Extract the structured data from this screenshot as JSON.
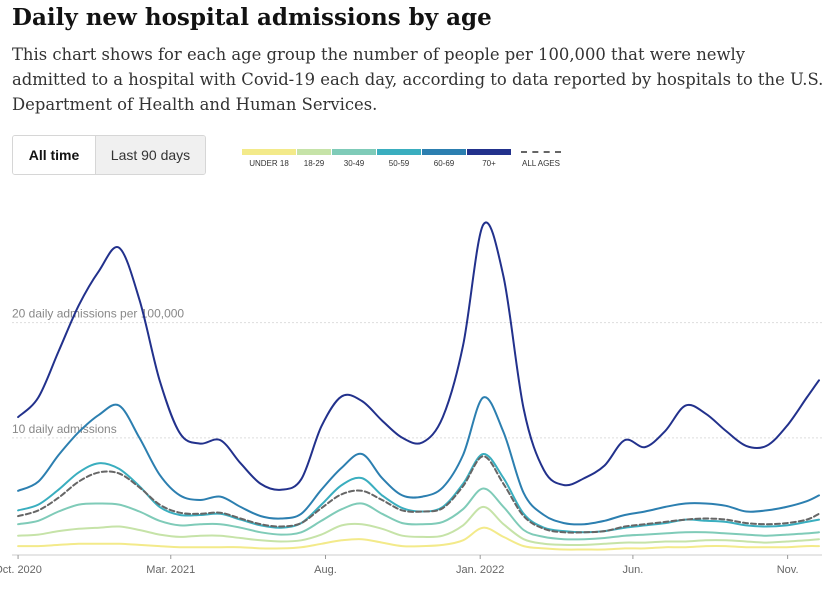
{
  "title": "Daily new hospital admissions by age",
  "description": "This chart shows for each age group the number of people per 100,000 that were newly admitted to a hospital with Covid-19 each day, according to data reported by hospitals to the U.S. Department of Health and Human Services.",
  "toggle": {
    "all_time": "All time",
    "last_90": "Last 90 days",
    "selected": "All time"
  },
  "legend": [
    {
      "label": "UNDER 18",
      "color": "#f3ea8a"
    },
    {
      "label": "18-29",
      "color": "#c6e3a8"
    },
    {
      "label": "30-49",
      "color": "#7fcbb8"
    },
    {
      "label": "50-59",
      "color": "#3aaebf"
    },
    {
      "label": "60-69",
      "color": "#2c7fb0"
    },
    {
      "label": "70+",
      "color": "#22318c"
    },
    {
      "label": "ALL AGES",
      "color": "#666666",
      "dashed": true
    }
  ],
  "chart_data": {
    "type": "line",
    "title": "Daily new hospital admissions by age",
    "xlabel": "",
    "ylabel": "",
    "y_gridlines": [
      {
        "value": 10,
        "label": "10 daily admissions"
      },
      {
        "value": 20,
        "label": "20 daily admissions per 100,000"
      }
    ],
    "ylim": [
      0,
      31
    ],
    "xlim": [
      "2020-09-25",
      "2022-12-05"
    ],
    "x_ticks": [
      {
        "date": "2020-10-01",
        "label": "Oct. 2020"
      },
      {
        "date": "2021-03-01",
        "label": "Mar. 2021"
      },
      {
        "date": "2021-08-01",
        "label": "Aug."
      },
      {
        "date": "2022-01-01",
        "label": "Jan. 2022"
      },
      {
        "date": "2022-06-01",
        "label": "Jun."
      },
      {
        "date": "2022-11-01",
        "label": "Nov."
      }
    ],
    "dates": [
      "2020-10-01",
      "2020-10-21",
      "2020-11-10",
      "2020-11-30",
      "2020-12-20",
      "2021-01-09",
      "2021-01-29",
      "2021-02-18",
      "2021-03-10",
      "2021-03-30",
      "2021-04-19",
      "2021-05-09",
      "2021-05-29",
      "2021-06-18",
      "2021-07-08",
      "2021-07-28",
      "2021-08-17",
      "2021-09-06",
      "2021-09-26",
      "2021-10-16",
      "2021-11-05",
      "2021-11-25",
      "2021-12-15",
      "2022-01-04",
      "2022-01-24",
      "2022-02-13",
      "2022-03-05",
      "2022-03-25",
      "2022-04-14",
      "2022-05-04",
      "2022-05-24",
      "2022-06-13",
      "2022-07-03",
      "2022-07-23",
      "2022-08-12",
      "2022-09-01",
      "2022-09-21",
      "2022-10-11",
      "2022-10-31",
      "2022-11-20",
      "2022-12-02"
    ],
    "series": [
      {
        "name": "70+",
        "color": "#22318c",
        "values": [
          11.8,
          13.5,
          17.5,
          21.5,
          24.5,
          26.5,
          22,
          15,
          10.4,
          9.5,
          9.8,
          7.8,
          6,
          5.5,
          6.4,
          11,
          13.6,
          13.2,
          11.5,
          10,
          9.6,
          11.8,
          18,
          28.5,
          24,
          12.5,
          7.2,
          5.9,
          6.5,
          7.6,
          9.8,
          9.2,
          10.6,
          12.8,
          12.1,
          10.6,
          9.3,
          9.3,
          11,
          13.5,
          15
        ]
      },
      {
        "name": "60-69",
        "color": "#2c7fb0",
        "values": [
          5.4,
          6.2,
          8.5,
          10.5,
          12,
          12.8,
          10,
          6.8,
          5,
          4.6,
          4.9,
          4,
          3.2,
          3,
          3.4,
          5.5,
          7.4,
          8.6,
          6.5,
          5,
          4.9,
          5.7,
          8.5,
          13.5,
          10.5,
          5.2,
          3.3,
          2.6,
          2.5,
          2.8,
          3.3,
          3.6,
          4,
          4.3,
          4.3,
          4.1,
          3.6,
          3.7,
          4,
          4.5,
          5
        ]
      },
      {
        "name": "50-59",
        "color": "#3aaebf",
        "values": [
          3.7,
          4.2,
          5.5,
          7,
          7.8,
          7.3,
          5.8,
          4,
          3.3,
          3.3,
          3.4,
          2.9,
          2.4,
          2.2,
          2.6,
          4.2,
          5.9,
          6.5,
          5,
          3.9,
          3.6,
          4,
          6,
          8.6,
          6.5,
          3.4,
          2.2,
          1.9,
          1.8,
          1.9,
          2.2,
          2.4,
          2.6,
          2.9,
          2.8,
          2.7,
          2.4,
          2.3,
          2.4,
          2.7,
          2.9
        ]
      },
      {
        "name": "30-49",
        "color": "#7fcbb8",
        "values": [
          2.5,
          2.8,
          3.6,
          4.2,
          4.3,
          4.2,
          3.6,
          2.8,
          2.4,
          2.5,
          2.5,
          2.2,
          1.8,
          1.6,
          1.8,
          2.8,
          3.8,
          4.3,
          3.4,
          2.6,
          2.5,
          2.7,
          3.8,
          5.6,
          4,
          2,
          1.4,
          1.2,
          1.2,
          1.3,
          1.5,
          1.6,
          1.7,
          1.8,
          1.8,
          1.7,
          1.6,
          1.5,
          1.6,
          1.7,
          1.8
        ]
      },
      {
        "name": "18-29",
        "color": "#c6e3a8",
        "values": [
          1.5,
          1.6,
          1.9,
          2.1,
          2.2,
          2.3,
          2,
          1.6,
          1.4,
          1.5,
          1.5,
          1.3,
          1.1,
          1,
          1.1,
          1.6,
          2.4,
          2.5,
          2.1,
          1.5,
          1.4,
          1.5,
          2.4,
          4,
          2.5,
          1.2,
          0.8,
          0.7,
          0.7,
          0.8,
          0.9,
          0.9,
          1,
          1,
          1.1,
          1.1,
          1,
          0.9,
          1,
          1.1,
          1.2
        ]
      },
      {
        "name": "UNDER 18",
        "color": "#f3ea8a",
        "values": [
          0.6,
          0.6,
          0.7,
          0.8,
          0.8,
          0.8,
          0.7,
          0.6,
          0.5,
          0.5,
          0.5,
          0.5,
          0.4,
          0.4,
          0.5,
          0.8,
          1.1,
          1.2,
          0.9,
          0.6,
          0.6,
          0.7,
          1.1,
          2.2,
          1.4,
          0.6,
          0.4,
          0.3,
          0.3,
          0.3,
          0.4,
          0.4,
          0.5,
          0.5,
          0.6,
          0.6,
          0.5,
          0.5,
          0.5,
          0.6,
          0.6
        ]
      },
      {
        "name": "ALL AGES",
        "color": "#666666",
        "dashed": true,
        "values": [
          3.2,
          3.7,
          4.8,
          6.2,
          7,
          6.9,
          5.7,
          4.2,
          3.5,
          3.4,
          3.5,
          3,
          2.5,
          2.3,
          2.6,
          3.9,
          5.1,
          5.4,
          4.6,
          3.7,
          3.6,
          3.9,
          5.8,
          8.4,
          6,
          3.2,
          2.1,
          1.8,
          1.8,
          1.9,
          2.3,
          2.5,
          2.7,
          2.9,
          3,
          2.9,
          2.6,
          2.5,
          2.6,
          2.9,
          3.4
        ]
      }
    ]
  }
}
